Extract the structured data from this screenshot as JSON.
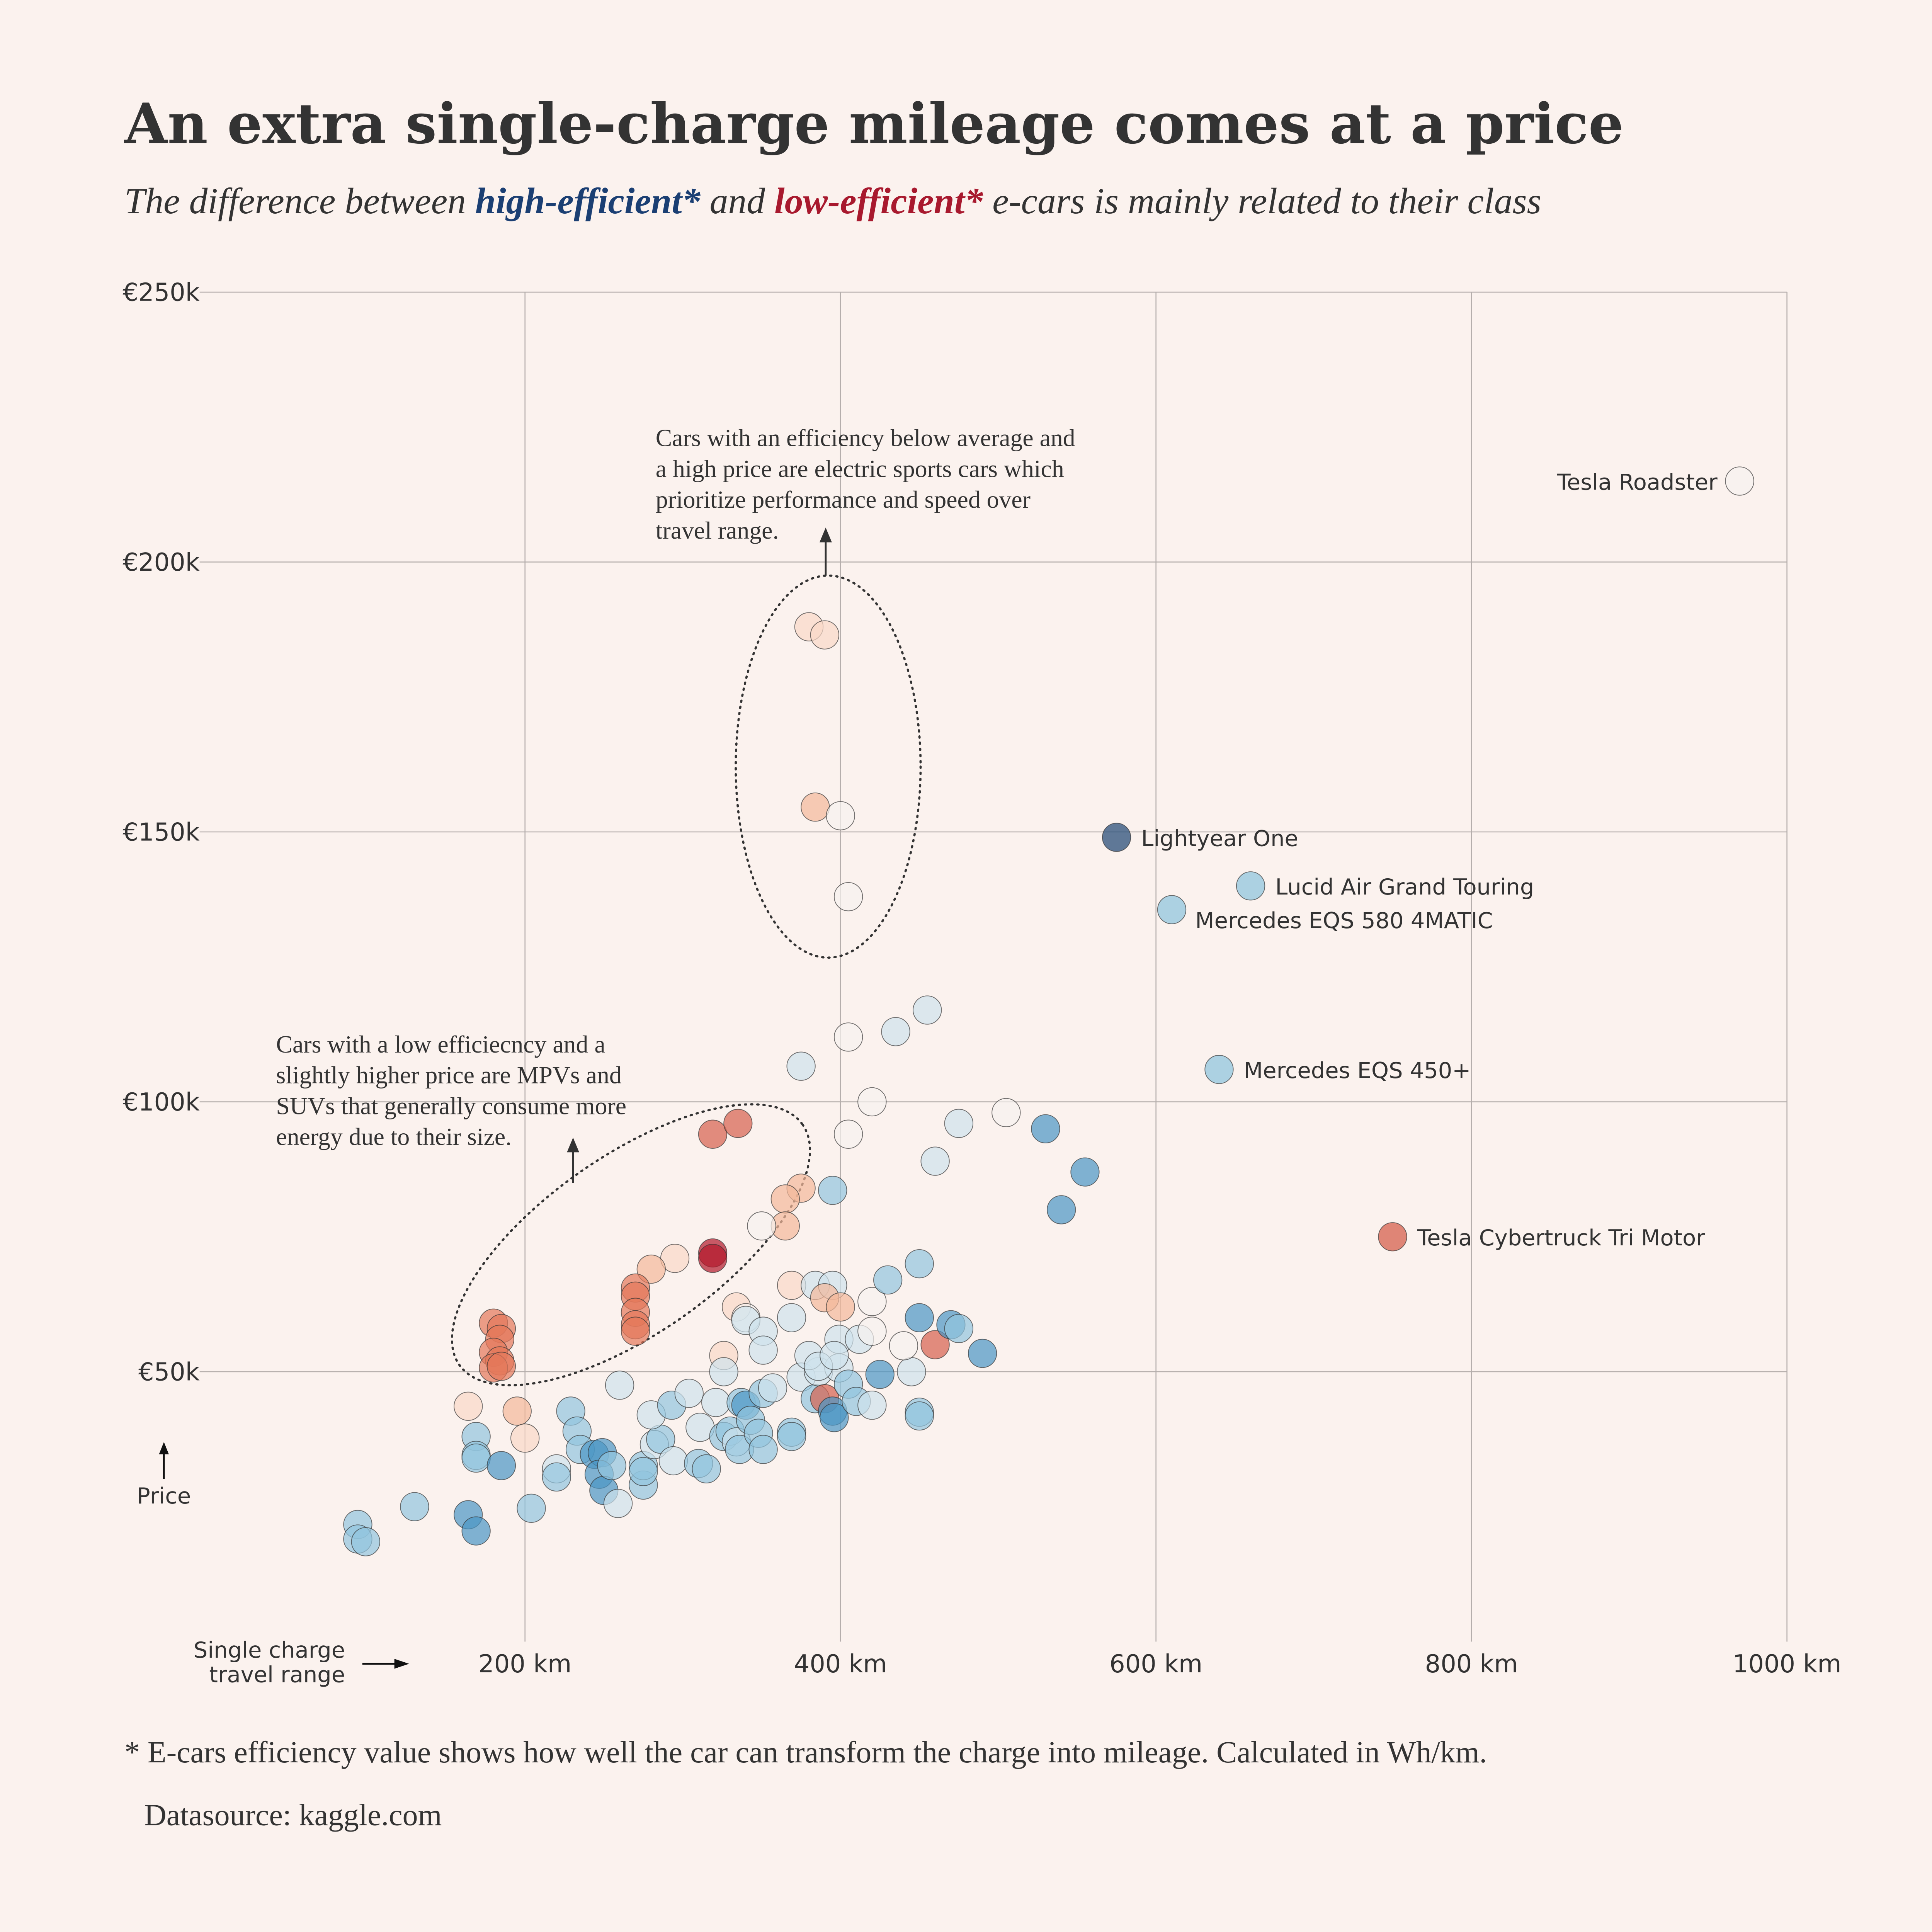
{
  "title": "An extra single-charge mileage comes at a price",
  "subtitle": {
    "pre": "The difference between ",
    "high": "high-efficient*",
    "mid": " and ",
    "low": "low-efficient*",
    "post": " e-cars is mainly related to their class",
    "high_color": "#1b3f73",
    "low_color": "#a8192e"
  },
  "footnote": "* E-cars efficiency value shows how well the car can transform the charge into mileage. Calculated in Wh/km.",
  "datasource": "Datasource: kaggle.com",
  "annotations": {
    "sports": [
      "Cars with an efficiency below average and",
      "a high price are electric sports cars which",
      "prioritize performance and speed over",
      "travel range."
    ],
    "mpv": [
      "Cars with a low efficiecncy and a",
      "slightly higher price are MPVs and",
      "SUVs that generally consume more",
      "energy due to their size."
    ]
  },
  "chart_data": {
    "type": "scatter",
    "xlabel": [
      "Single charge",
      "travel range"
    ],
    "ylabel": "Price",
    "xlim": [
      0,
      1000
    ],
    "ylim": [
      0,
      250
    ],
    "x_ticks": [
      {
        "v": 200,
        "label": "200 km"
      },
      {
        "v": 400,
        "label": "400 km"
      },
      {
        "v": 600,
        "label": "600 km"
      },
      {
        "v": 800,
        "label": "800 km"
      },
      {
        "v": 1000,
        "label": "1000 km"
      }
    ],
    "y_ticks": [
      {
        "v": 50,
        "label": "€50k"
      },
      {
        "v": 100,
        "label": "€100k"
      },
      {
        "v": 150,
        "label": "€150k"
      },
      {
        "v": 200,
        "label": "€200k"
      },
      {
        "v": 250,
        "label": "€250k"
      }
    ],
    "grid": true,
    "color_encoding": "efficiency (blue = high-efficient, red = low-efficient)",
    "colors": {
      "dr": "#b2182b",
      "r": "#d6604d",
      "s": "#e4785a",
      "p": "#f4b89a",
      "lp": "#fad8c8",
      "w": "#f7f2ef",
      "lb": "#cfe2ec",
      "b": "#92c5de",
      "db": "#4a95c4",
      "n": "#2b4f7a"
    },
    "labeled": [
      {
        "name": "Tesla Roadster",
        "x": 970,
        "y": 215,
        "c": "w",
        "side": "left"
      },
      {
        "name": "Lightyear One",
        "x": 575,
        "y": 149,
        "c": "n",
        "side": "right"
      },
      {
        "name": "Lucid Air Grand Touring",
        "x": 660,
        "y": 140,
        "c": "b",
        "side": "right"
      },
      {
        "name": "Mercedes EQS 580 4MATIC",
        "x": 610,
        "y": 135.6,
        "c": "b",
        "side": "below"
      },
      {
        "name": "Mercedes EQS 450+",
        "x": 640,
        "y": 106,
        "c": "b",
        "side": "right"
      },
      {
        "name": "Tesla Cybertruck Tri Motor",
        "x": 750,
        "y": 75,
        "c": "r",
        "side": "right"
      }
    ],
    "points": [
      [
        380,
        188,
        "lp"
      ],
      [
        390,
        186.5,
        "lp"
      ],
      [
        384,
        154.6,
        "p"
      ],
      [
        400,
        153,
        "w"
      ],
      [
        405,
        138,
        "w"
      ],
      [
        375,
        106.6,
        "lb"
      ],
      [
        405,
        112,
        "w"
      ],
      [
        435,
        113,
        "lb"
      ],
      [
        455,
        117,
        "lb"
      ],
      [
        420,
        100,
        "w"
      ],
      [
        405,
        94,
        "w"
      ],
      [
        475,
        96,
        "lb"
      ],
      [
        505,
        98,
        "w"
      ],
      [
        530,
        95,
        "db"
      ],
      [
        555,
        87,
        "db"
      ],
      [
        460,
        89,
        "lb"
      ],
      [
        540,
        80,
        "db"
      ],
      [
        395,
        83.6,
        "b"
      ],
      [
        319,
        94,
        "r"
      ],
      [
        335,
        96,
        "r"
      ],
      [
        375,
        84,
        "p"
      ],
      [
        365,
        82,
        "p"
      ],
      [
        365,
        77,
        "p"
      ],
      [
        350,
        77,
        "w"
      ],
      [
        295,
        71,
        "lp"
      ],
      [
        280,
        69,
        "p"
      ],
      [
        319,
        72,
        "dr"
      ],
      [
        319,
        71,
        "dr"
      ],
      [
        270,
        65.5,
        "s"
      ],
      [
        270,
        64,
        "s"
      ],
      [
        270,
        61,
        "s"
      ],
      [
        270,
        58.7,
        "s"
      ],
      [
        270,
        57.5,
        "s"
      ],
      [
        180,
        59,
        "s"
      ],
      [
        185,
        58,
        "s"
      ],
      [
        184,
        56,
        "s"
      ],
      [
        180,
        53.6,
        "s"
      ],
      [
        184,
        52,
        "s"
      ],
      [
        180,
        50.7,
        "s"
      ],
      [
        185,
        51,
        "s"
      ],
      [
        164,
        43.6,
        "lp"
      ],
      [
        195,
        42.7,
        "p"
      ],
      [
        200,
        37.7,
        "lp"
      ],
      [
        169,
        38,
        "b"
      ],
      [
        169,
        34.5,
        "b"
      ],
      [
        169,
        34,
        "b"
      ],
      [
        185,
        32.6,
        "db"
      ],
      [
        94,
        21.7,
        "b"
      ],
      [
        94,
        19,
        "b"
      ],
      [
        99,
        18.5,
        "b"
      ],
      [
        130,
        25,
        "b"
      ],
      [
        164,
        23.5,
        "db"
      ],
      [
        169,
        20.5,
        "db"
      ],
      [
        204,
        24.7,
        "b"
      ],
      [
        229,
        42.7,
        "b"
      ],
      [
        233,
        39,
        "b"
      ],
      [
        235,
        35.6,
        "b"
      ],
      [
        220,
        32,
        "lb"
      ],
      [
        220,
        30.5,
        "b"
      ],
      [
        244,
        34.7,
        "db"
      ],
      [
        249,
        35,
        "db"
      ],
      [
        247,
        31,
        "db"
      ],
      [
        250,
        28,
        "db"
      ],
      [
        259,
        25.6,
        "lb"
      ],
      [
        255,
        32.6,
        "b"
      ],
      [
        275,
        29,
        "b"
      ],
      [
        275,
        32.6,
        "b"
      ],
      [
        275,
        31.5,
        "b"
      ],
      [
        282,
        36.5,
        "lb"
      ],
      [
        286,
        37.5,
        "b"
      ],
      [
        280,
        42,
        "lb"
      ],
      [
        293,
        43.8,
        "b"
      ],
      [
        304,
        46,
        "lb"
      ],
      [
        294,
        33.5,
        "lb"
      ],
      [
        311,
        39.7,
        "lb"
      ],
      [
        310,
        33,
        "b"
      ],
      [
        315,
        32,
        "b"
      ],
      [
        321,
        44.3,
        "lb"
      ],
      [
        326,
        38,
        "b"
      ],
      [
        330,
        39,
        "b"
      ],
      [
        334,
        37,
        "lb"
      ],
      [
        336,
        35.6,
        "b"
      ],
      [
        337,
        44.3,
        "b"
      ],
      [
        340,
        43.8,
        "db"
      ],
      [
        343,
        41,
        "b"
      ],
      [
        348,
        38.6,
        "b"
      ],
      [
        351,
        35.6,
        "b"
      ],
      [
        351,
        46,
        "b"
      ],
      [
        357,
        47,
        "lb"
      ],
      [
        369,
        38.8,
        "b"
      ],
      [
        369,
        38,
        "b"
      ],
      [
        375,
        49,
        "lb"
      ],
      [
        384,
        45,
        "b"
      ],
      [
        386,
        50,
        "lb"
      ],
      [
        390,
        45,
        "r"
      ],
      [
        395,
        42.7,
        "db"
      ],
      [
        396,
        41.5,
        "db"
      ],
      [
        399,
        50.7,
        "lb"
      ],
      [
        405,
        47.7,
        "b"
      ],
      [
        410,
        44.5,
        "b"
      ],
      [
        420,
        43.8,
        "lb"
      ],
      [
        425,
        49.5,
        "db"
      ],
      [
        445,
        50,
        "lb"
      ],
      [
        450,
        42.5,
        "b"
      ],
      [
        450,
        41.8,
        "b"
      ],
      [
        260,
        47.5,
        "lb"
      ],
      [
        326,
        53,
        "lp"
      ],
      [
        326,
        50,
        "lb"
      ],
      [
        334,
        62,
        "lp"
      ],
      [
        340,
        60,
        "w"
      ],
      [
        340,
        59.5,
        "lb"
      ],
      [
        351,
        57.5,
        "lb"
      ],
      [
        351,
        54,
        "lb"
      ],
      [
        369,
        60,
        "lb"
      ],
      [
        369,
        66,
        "lp"
      ],
      [
        384,
        66,
        "lb"
      ],
      [
        395,
        66,
        "lb"
      ],
      [
        390,
        63.7,
        "p"
      ],
      [
        400,
        62,
        "p"
      ],
      [
        399,
        56,
        "lb"
      ],
      [
        412,
        56,
        "lb"
      ],
      [
        420,
        63,
        "w"
      ],
      [
        420,
        57.5,
        "w"
      ],
      [
        430,
        67,
        "b"
      ],
      [
        440,
        54.8,
        "w"
      ],
      [
        450,
        70,
        "b"
      ],
      [
        450,
        60,
        "db"
      ],
      [
        460,
        55,
        "r"
      ],
      [
        470,
        58.7,
        "db"
      ],
      [
        475,
        58,
        "b"
      ],
      [
        490,
        53.4,
        "db"
      ],
      [
        380,
        53,
        "lb"
      ],
      [
        386,
        51,
        "lb"
      ],
      [
        396,
        53,
        "lb"
      ]
    ]
  }
}
